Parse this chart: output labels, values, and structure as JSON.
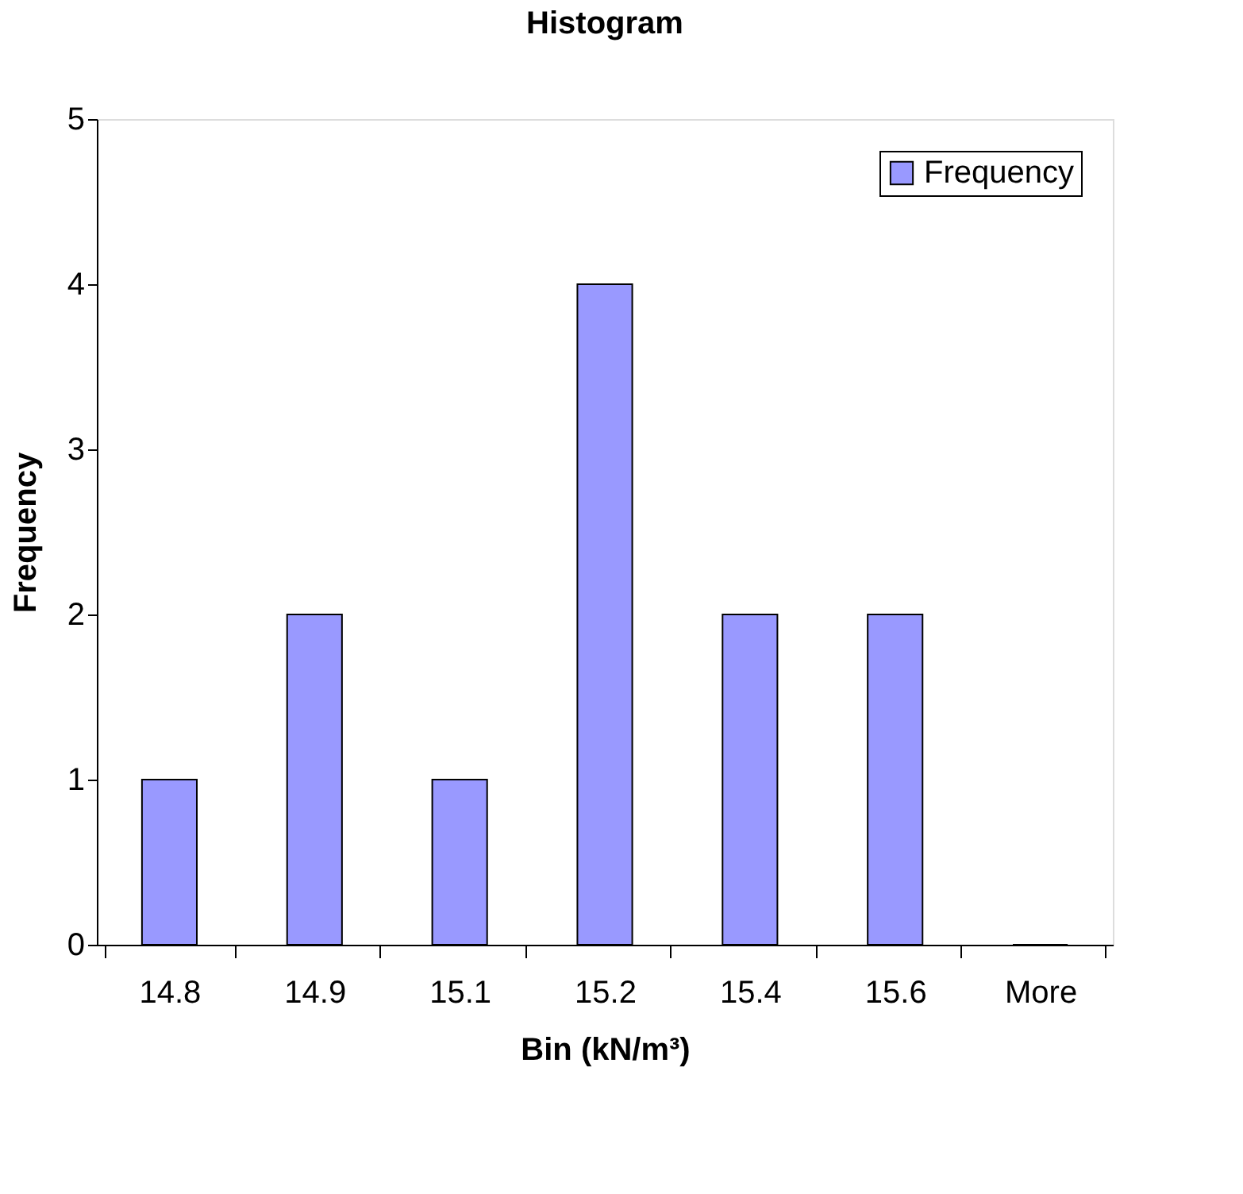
{
  "chart_data": {
    "type": "bar",
    "title": "Histogram",
    "xlabel": "Bin (kN/m³)",
    "ylabel": "Frequency",
    "categories": [
      "14.8",
      "14.9",
      "15.1",
      "15.2",
      "15.4",
      "15.6",
      "More"
    ],
    "series": [
      {
        "name": "Frequency",
        "color": "#9999ff",
        "values": [
          1,
          2,
          1,
          4,
          2,
          2,
          0
        ]
      }
    ],
    "ylim": [
      0,
      5
    ],
    "yticks": [
      0,
      1,
      2,
      3,
      4,
      5
    ],
    "grid": false,
    "legend": "top right"
  }
}
